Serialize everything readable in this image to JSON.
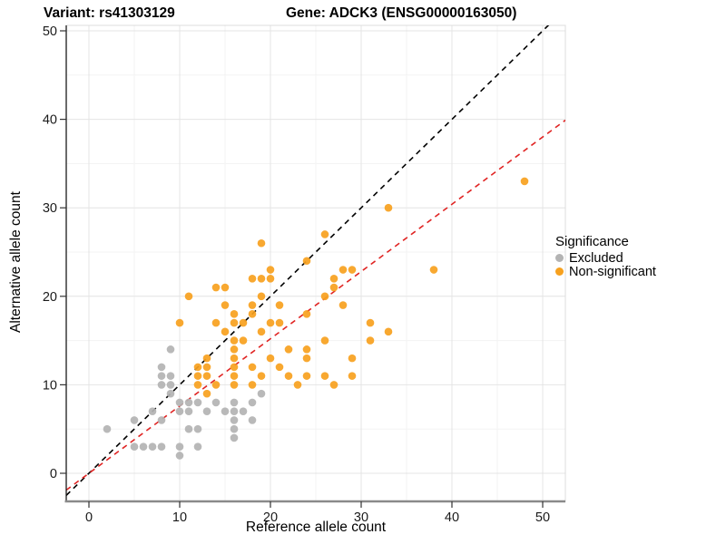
{
  "titles": {
    "variant": "Variant: rs41303129",
    "gene": "Gene: ADCK3 (ENSG00000163050)"
  },
  "chart_data": {
    "type": "scatter",
    "xlabel": "Reference allele count",
    "ylabel": "Alternative allele count",
    "xlim": [
      -2.5,
      52.5
    ],
    "ylim": [
      -3,
      51
    ],
    "x_ticks": [
      0,
      10,
      20,
      30,
      40,
      50
    ],
    "y_ticks": [
      0,
      10,
      20,
      30,
      40,
      50
    ],
    "minor_ticks": [
      5,
      15,
      25,
      35,
      45
    ],
    "grid": "major and minor, light gray on white",
    "colors": {
      "excluded": "#B3B3B3",
      "non_significant": "#F7A11E",
      "identity_line": "#000000",
      "fit_line": "#E02423",
      "major_grid": "#E4E4E4",
      "minor_grid": "#F3F3F3",
      "axis_line_x": "#8A8A8A",
      "axis_line_y": "#1A1A1A"
    },
    "legend": {
      "title": "Significance",
      "position": "right",
      "items": [
        {
          "label": "Excluded",
          "color": "#B3B3B3"
        },
        {
          "label": "Non-significant",
          "color": "#F7A11E"
        }
      ]
    },
    "lines": [
      {
        "name": "identity",
        "style": "dashed",
        "color": "#000000",
        "slope": 1,
        "intercept": 0
      },
      {
        "name": "fit",
        "style": "dashed",
        "color": "#E02423",
        "slope": 0.76,
        "intercept": 0
      }
    ],
    "series": [
      {
        "name": "Excluded",
        "color": "#B3B3B3",
        "points": [
          [
            2,
            5
          ],
          [
            5,
            6
          ],
          [
            7,
            7
          ],
          [
            8,
            6
          ],
          [
            5,
            3
          ],
          [
            6,
            3
          ],
          [
            7,
            3
          ],
          [
            8,
            3
          ],
          [
            10,
            3
          ],
          [
            12,
            3
          ],
          [
            10,
            2
          ],
          [
            8,
            10
          ],
          [
            8,
            11
          ],
          [
            8,
            12
          ],
          [
            9,
            9
          ],
          [
            9,
            10
          ],
          [
            9,
            11
          ],
          [
            9,
            14
          ],
          [
            10,
            7
          ],
          [
            10,
            8
          ],
          [
            11,
            5
          ],
          [
            11,
            7
          ],
          [
            11,
            8
          ],
          [
            12,
            5
          ],
          [
            12,
            8
          ],
          [
            13,
            7
          ],
          [
            14,
            8
          ],
          [
            15,
            7
          ],
          [
            16,
            4
          ],
          [
            16,
            5
          ],
          [
            16,
            6
          ],
          [
            16,
            7
          ],
          [
            16,
            8
          ],
          [
            17,
            7
          ],
          [
            18,
            6
          ],
          [
            18,
            8
          ],
          [
            19,
            9
          ]
        ]
      },
      {
        "name": "Non-significant",
        "color": "#F7A11E",
        "points": [
          [
            10,
            17
          ],
          [
            11,
            20
          ],
          [
            12,
            10
          ],
          [
            12,
            11
          ],
          [
            12,
            12
          ],
          [
            13,
            9
          ],
          [
            13,
            11
          ],
          [
            13,
            12
          ],
          [
            13,
            13
          ],
          [
            14,
            10
          ],
          [
            14,
            17
          ],
          [
            14,
            21
          ],
          [
            15,
            16
          ],
          [
            15,
            19
          ],
          [
            15,
            21
          ],
          [
            16,
            10
          ],
          [
            16,
            11
          ],
          [
            16,
            12
          ],
          [
            16,
            13
          ],
          [
            16,
            14
          ],
          [
            16,
            15
          ],
          [
            16,
            17
          ],
          [
            16,
            18
          ],
          [
            17,
            15
          ],
          [
            17,
            17
          ],
          [
            18,
            10
          ],
          [
            18,
            12
          ],
          [
            18,
            18
          ],
          [
            18,
            19
          ],
          [
            18,
            22
          ],
          [
            19,
            11
          ],
          [
            19,
            16
          ],
          [
            19,
            20
          ],
          [
            19,
            22
          ],
          [
            19,
            26
          ],
          [
            20,
            13
          ],
          [
            20,
            17
          ],
          [
            20,
            22
          ],
          [
            20,
            23
          ],
          [
            21,
            12
          ],
          [
            21,
            17
          ],
          [
            21,
            19
          ],
          [
            22,
            11
          ],
          [
            22,
            14
          ],
          [
            23,
            10
          ],
          [
            24,
            11
          ],
          [
            24,
            13
          ],
          [
            24,
            14
          ],
          [
            24,
            18
          ],
          [
            24,
            24
          ],
          [
            26,
            11
          ],
          [
            26,
            15
          ],
          [
            26,
            20
          ],
          [
            26,
            27
          ],
          [
            27,
            10
          ],
          [
            27,
            21
          ],
          [
            27,
            22
          ],
          [
            28,
            19
          ],
          [
            28,
            23
          ],
          [
            29,
            11
          ],
          [
            29,
            13
          ],
          [
            29,
            23
          ],
          [
            31,
            15
          ],
          [
            31,
            17
          ],
          [
            33,
            16
          ],
          [
            33,
            30
          ],
          [
            38,
            23
          ],
          [
            48,
            33
          ]
        ]
      }
    ]
  }
}
